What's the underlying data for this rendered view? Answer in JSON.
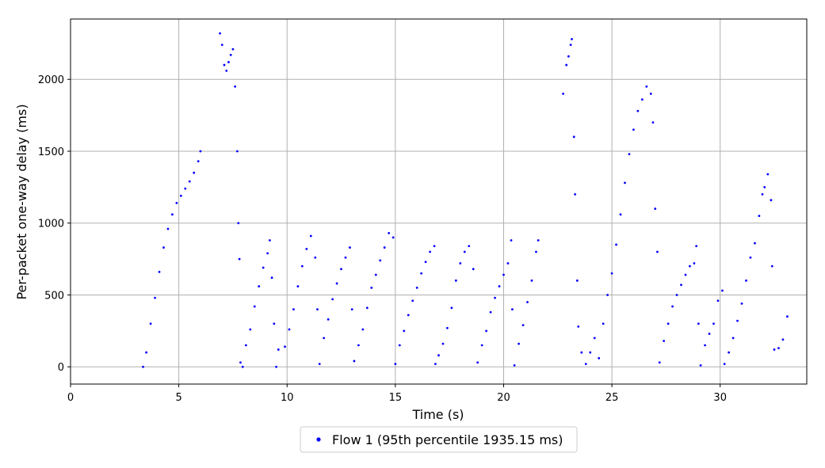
{
  "chart_data": {
    "type": "scatter",
    "title": "",
    "xlabel": "Time (s)",
    "ylabel": "Per-packet one-way delay (ms)",
    "xlim": [
      0,
      34
    ],
    "ylim": [
      -120,
      2420
    ],
    "xticks": [
      0,
      5,
      10,
      15,
      20,
      25,
      30
    ],
    "yticks": [
      0,
      500,
      1000,
      1500,
      2000
    ],
    "grid": true,
    "legend_position": "bottom-center",
    "series": [
      {
        "name": "Flow 1 (95th percentile 1935.15 ms)",
        "color": "#0000ff",
        "points": [
          [
            3.35,
            0
          ],
          [
            3.5,
            100
          ],
          [
            3.7,
            300
          ],
          [
            3.9,
            480
          ],
          [
            4.1,
            660
          ],
          [
            4.3,
            830
          ],
          [
            4.5,
            960
          ],
          [
            4.7,
            1060
          ],
          [
            4.9,
            1140
          ],
          [
            5.1,
            1190
          ],
          [
            5.3,
            1240
          ],
          [
            5.5,
            1290
          ],
          [
            5.7,
            1350
          ],
          [
            5.9,
            1430
          ],
          [
            6.0,
            1500
          ],
          [
            6.9,
            2320
          ],
          [
            7.0,
            2240
          ],
          [
            7.1,
            2100
          ],
          [
            7.2,
            2060
          ],
          [
            7.3,
            2120
          ],
          [
            7.4,
            2170
          ],
          [
            7.5,
            2210
          ],
          [
            7.6,
            1950
          ],
          [
            7.7,
            1500
          ],
          [
            7.75,
            1000
          ],
          [
            7.8,
            750
          ],
          [
            7.85,
            30
          ],
          [
            7.95,
            0
          ],
          [
            8.1,
            150
          ],
          [
            8.3,
            260
          ],
          [
            8.5,
            420
          ],
          [
            8.7,
            560
          ],
          [
            8.9,
            690
          ],
          [
            9.1,
            790
          ],
          [
            9.2,
            880
          ],
          [
            9.3,
            620
          ],
          [
            9.4,
            300
          ],
          [
            9.5,
            0
          ],
          [
            9.6,
            120
          ],
          [
            9.9,
            140
          ],
          [
            10.1,
            260
          ],
          [
            10.3,
            400
          ],
          [
            10.5,
            560
          ],
          [
            10.7,
            700
          ],
          [
            10.9,
            820
          ],
          [
            11.1,
            910
          ],
          [
            11.3,
            760
          ],
          [
            11.4,
            400
          ],
          [
            11.5,
            20
          ],
          [
            11.7,
            200
          ],
          [
            11.9,
            330
          ],
          [
            12.1,
            470
          ],
          [
            12.3,
            580
          ],
          [
            12.5,
            680
          ],
          [
            12.7,
            760
          ],
          [
            12.9,
            830
          ],
          [
            13.0,
            400
          ],
          [
            13.1,
            40
          ],
          [
            13.3,
            150
          ],
          [
            13.5,
            260
          ],
          [
            13.7,
            410
          ],
          [
            13.9,
            550
          ],
          [
            14.1,
            640
          ],
          [
            14.3,
            740
          ],
          [
            14.5,
            830
          ],
          [
            14.7,
            930
          ],
          [
            14.9,
            900
          ],
          [
            15.0,
            20
          ],
          [
            15.2,
            150
          ],
          [
            15.4,
            250
          ],
          [
            15.6,
            360
          ],
          [
            15.8,
            460
          ],
          [
            16.0,
            550
          ],
          [
            16.2,
            650
          ],
          [
            16.4,
            730
          ],
          [
            16.6,
            800
          ],
          [
            16.8,
            840
          ],
          [
            16.85,
            20
          ],
          [
            17.0,
            80
          ],
          [
            17.2,
            160
          ],
          [
            17.4,
            270
          ],
          [
            17.6,
            410
          ],
          [
            17.8,
            600
          ],
          [
            18.0,
            720
          ],
          [
            18.2,
            800
          ],
          [
            18.4,
            840
          ],
          [
            18.6,
            680
          ],
          [
            18.8,
            30
          ],
          [
            19.0,
            150
          ],
          [
            19.2,
            250
          ],
          [
            19.4,
            380
          ],
          [
            19.6,
            480
          ],
          [
            19.8,
            560
          ],
          [
            20.0,
            640
          ],
          [
            20.2,
            720
          ],
          [
            20.35,
            880
          ],
          [
            20.4,
            400
          ],
          [
            20.5,
            10
          ],
          [
            20.7,
            160
          ],
          [
            20.9,
            290
          ],
          [
            21.1,
            450
          ],
          [
            21.3,
            600
          ],
          [
            21.5,
            800
          ],
          [
            21.6,
            880
          ],
          [
            22.75,
            1900
          ],
          [
            22.9,
            2100
          ],
          [
            23.0,
            2160
          ],
          [
            23.1,
            2240
          ],
          [
            23.15,
            2280
          ],
          [
            23.25,
            1600
          ],
          [
            23.3,
            1200
          ],
          [
            23.4,
            600
          ],
          [
            23.45,
            280
          ],
          [
            23.6,
            100
          ],
          [
            23.8,
            20
          ],
          [
            24.0,
            100
          ],
          [
            24.2,
            200
          ],
          [
            24.4,
            60
          ],
          [
            24.6,
            300
          ],
          [
            24.8,
            500
          ],
          [
            25.0,
            650
          ],
          [
            25.2,
            850
          ],
          [
            25.4,
            1060
          ],
          [
            25.6,
            1280
          ],
          [
            25.8,
            1480
          ],
          [
            26.0,
            1650
          ],
          [
            26.2,
            1780
          ],
          [
            26.4,
            1860
          ],
          [
            26.6,
            1950
          ],
          [
            26.8,
            1900
          ],
          [
            26.9,
            1700
          ],
          [
            27.0,
            1100
          ],
          [
            27.1,
            800
          ],
          [
            27.2,
            30
          ],
          [
            27.4,
            180
          ],
          [
            27.6,
            300
          ],
          [
            27.8,
            420
          ],
          [
            28.0,
            500
          ],
          [
            28.2,
            570
          ],
          [
            28.4,
            640
          ],
          [
            28.6,
            700
          ],
          [
            28.8,
            720
          ],
          [
            28.9,
            840
          ],
          [
            29.0,
            300
          ],
          [
            29.1,
            10
          ],
          [
            29.3,
            150
          ],
          [
            29.5,
            230
          ],
          [
            29.7,
            300
          ],
          [
            29.9,
            460
          ],
          [
            30.1,
            530
          ],
          [
            30.2,
            20
          ],
          [
            30.4,
            100
          ],
          [
            30.6,
            200
          ],
          [
            30.8,
            320
          ],
          [
            31.0,
            440
          ],
          [
            31.2,
            600
          ],
          [
            31.4,
            760
          ],
          [
            31.6,
            860
          ],
          [
            31.8,
            1050
          ],
          [
            31.95,
            1200
          ],
          [
            32.05,
            1250
          ],
          [
            32.2,
            1340
          ],
          [
            32.35,
            1160
          ],
          [
            32.4,
            700
          ],
          [
            32.5,
            120
          ],
          [
            32.7,
            130
          ],
          [
            32.9,
            190
          ],
          [
            33.1,
            350
          ]
        ]
      }
    ]
  }
}
